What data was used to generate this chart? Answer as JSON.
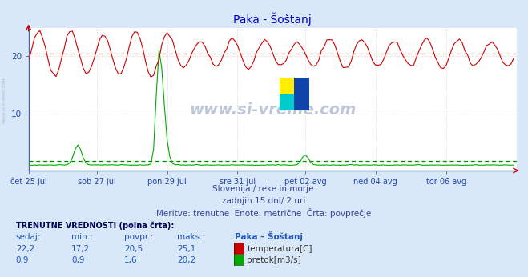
{
  "title": "Paka - Šoštanj",
  "bg_color": "#d8e8f8",
  "plot_bg_color": "#ffffff",
  "grid_color": "#e8c8c8",
  "x_labels": [
    "čet 25 jul",
    "sob 27 jul",
    "pon 29 jul",
    "sre 31 jul",
    "pet 02 avg",
    "ned 04 avg",
    "tor 06 avg"
  ],
  "n_points": 180,
  "ylim": [
    0,
    25
  ],
  "yticks": [
    10,
    20
  ],
  "temp_color": "#cc0000",
  "flow_color": "#00aa00",
  "avg_temp_color": "#ff8888",
  "avg_flow_color": "#008800",
  "temp_avg": 20.5,
  "flow_avg": 1.6,
  "subtitle1": "Slovenija / reke in morje.",
  "subtitle2": "zadnjih 15 dni/ 2 uri",
  "subtitle3": "Meritve: trenutne  Enote: metrične  Črta: povprečje",
  "table_header": "TRENUTNE VREDNOSTI (polna črta):",
  "col_headers": [
    "sedaj:",
    "min.:",
    "povpr.:",
    "maks.:",
    "Paka – Šoštanj"
  ],
  "temp_row": [
    "22,2",
    "17,2",
    "20,5",
    "25,1"
  ],
  "flow_row": [
    "0,9",
    "0,9",
    "1,6",
    "20,2"
  ],
  "temp_label": "temperatura[C]",
  "flow_label": "pretok[m3/s]",
  "watermark": "www.si-vreme.com",
  "left_label": "www.si-vreme.com"
}
